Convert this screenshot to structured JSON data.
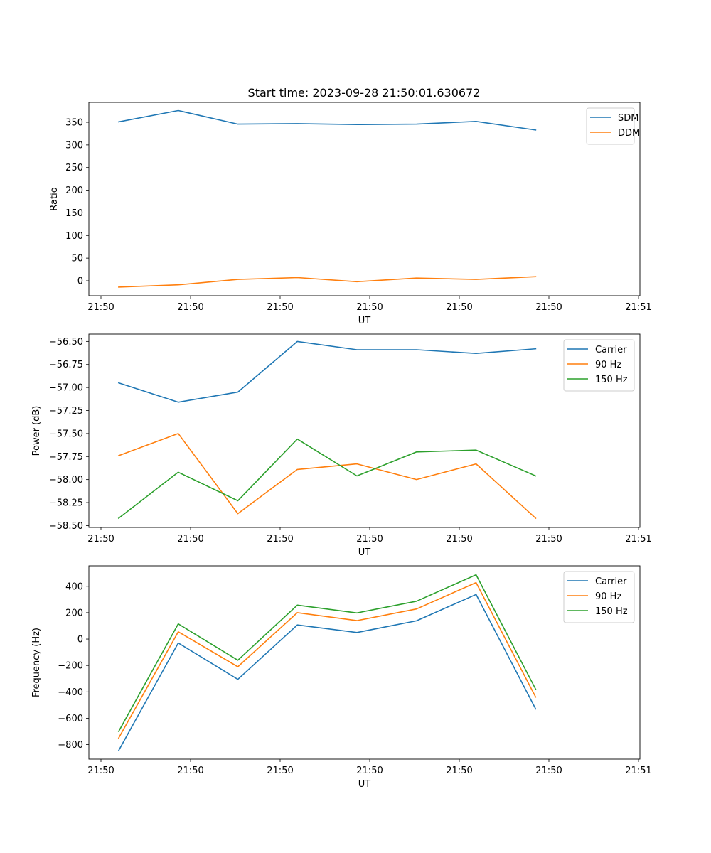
{
  "title": "Start time: 2023-09-28 21:50:01.630672",
  "chart_data": [
    {
      "type": "line",
      "xlabel": "UT",
      "ylabel": "Ratio",
      "x_ticks": [
        "21:50",
        "21:50",
        "21:50",
        "21:50",
        "21:50",
        "21:50",
        "21:51"
      ],
      "x_sample_ticks": [
        0.5,
        1.5,
        2.5,
        3.5,
        4.5,
        5.5,
        6.5,
        7.5
      ],
      "xlim": [
        0,
        9.25
      ],
      "ylim": [
        -33,
        394
      ],
      "y_ticks": [
        0,
        50,
        100,
        150,
        200,
        250,
        300,
        350
      ],
      "legend_position": "top-right",
      "series": [
        {
          "name": "SDM",
          "color": "#1f77b4",
          "values": [
            351,
            376,
            346,
            347,
            345,
            346,
            352,
            333
          ]
        },
        {
          "name": "DDM",
          "color": "#ff7f0e",
          "values": [
            -14,
            -9,
            3,
            7,
            -2,
            6,
            3,
            9
          ]
        }
      ]
    },
    {
      "type": "line",
      "xlabel": "UT",
      "ylabel": "Power (dB)",
      "x_ticks": [
        "21:50",
        "21:50",
        "21:50",
        "21:50",
        "21:50",
        "21:50",
        "21:51"
      ],
      "x_sample_ticks": [
        0.5,
        1.5,
        2.5,
        3.5,
        4.5,
        5.5,
        6.5,
        7.5
      ],
      "xlim": [
        0,
        9.25
      ],
      "ylim": [
        -58.52,
        -56.42
      ],
      "y_ticks": [
        -58.5,
        -58.25,
        -58.0,
        -57.75,
        -57.5,
        -57.25,
        -57.0,
        -56.75,
        -56.5
      ],
      "y_tick_labels": [
        "−58.50",
        "−58.25",
        "−58.00",
        "−57.75",
        "−57.50",
        "−57.25",
        "−57.00",
        "−56.75",
        "−56.50"
      ],
      "legend_position": "top-right",
      "series": [
        {
          "name": "Carrier",
          "color": "#1f77b4",
          "values": [
            -56.95,
            -57.16,
            -57.05,
            -56.5,
            -56.59,
            -56.59,
            -56.63,
            -56.58
          ]
        },
        {
          "name": "90 Hz",
          "color": "#ff7f0e",
          "values": [
            -57.74,
            -57.5,
            -58.37,
            -57.89,
            -57.83,
            -58.0,
            -57.83,
            -58.42
          ]
        },
        {
          "name": "150 Hz",
          "color": "#2ca02c",
          "values": [
            -58.42,
            -57.92,
            -58.23,
            -57.56,
            -57.96,
            -57.7,
            -57.68,
            -57.96
          ]
        }
      ]
    },
    {
      "type": "line",
      "xlabel": "UT",
      "ylabel": "Frequency (Hz)",
      "x_ticks": [
        "21:50",
        "21:50",
        "21:50",
        "21:50",
        "21:50",
        "21:50",
        "21:51"
      ],
      "x_sample_ticks": [
        0.5,
        1.5,
        2.5,
        3.5,
        4.5,
        5.5,
        6.5,
        7.5
      ],
      "xlim": [
        0,
        9.25
      ],
      "ylim": [
        -910,
        555
      ],
      "y_ticks": [
        -800,
        -600,
        -400,
        -200,
        0,
        200,
        400
      ],
      "y_tick_labels": [
        "−800",
        "−600",
        "−400",
        "−200",
        "0",
        "200",
        "400"
      ],
      "legend_position": "top-right",
      "series": [
        {
          "name": "Carrier",
          "color": "#1f77b4",
          "values": [
            -845,
            -30,
            -305,
            107,
            50,
            138,
            338,
            -530
          ]
        },
        {
          "name": "90 Hz",
          "color": "#ff7f0e",
          "values": [
            -750,
            55,
            -210,
            200,
            140,
            228,
            428,
            -440
          ]
        },
        {
          "name": "150 Hz",
          "color": "#2ca02c",
          "values": [
            -700,
            115,
            -160,
            257,
            198,
            287,
            487,
            -380
          ]
        }
      ]
    }
  ]
}
